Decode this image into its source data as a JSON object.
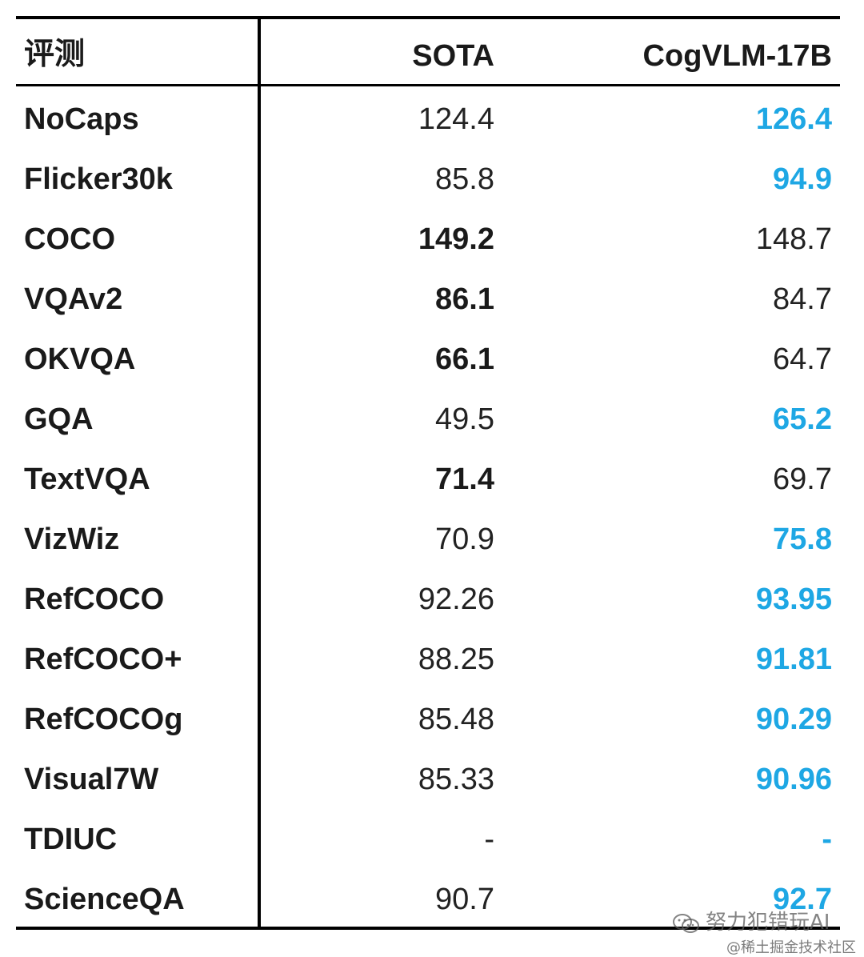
{
  "chart_data": {
    "type": "table",
    "columns": [
      "评测",
      "SOTA",
      "CogVLM-17B"
    ],
    "rows": [
      {
        "benchmark": "NoCaps",
        "sota": "124.4",
        "cogvlm": "126.4",
        "best": "cogvlm"
      },
      {
        "benchmark": "Flicker30k",
        "sota": "85.8",
        "cogvlm": "94.9",
        "best": "cogvlm"
      },
      {
        "benchmark": "COCO",
        "sota": "149.2",
        "cogvlm": "148.7",
        "best": "sota"
      },
      {
        "benchmark": "VQAv2",
        "sota": "86.1",
        "cogvlm": "84.7",
        "best": "sota"
      },
      {
        "benchmark": "OKVQA",
        "sota": "66.1",
        "cogvlm": "64.7",
        "best": "sota"
      },
      {
        "benchmark": "GQA",
        "sota": "49.5",
        "cogvlm": "65.2",
        "best": "cogvlm"
      },
      {
        "benchmark": "TextVQA",
        "sota": "71.4",
        "cogvlm": "69.7",
        "best": "sota"
      },
      {
        "benchmark": "VizWiz",
        "sota": "70.9",
        "cogvlm": "75.8",
        "best": "cogvlm"
      },
      {
        "benchmark": "RefCOCO",
        "sota": "92.26",
        "cogvlm": "93.95",
        "best": "cogvlm"
      },
      {
        "benchmark": "RefCOCO+",
        "sota": "88.25",
        "cogvlm": "91.81",
        "best": "cogvlm"
      },
      {
        "benchmark": "RefCOCOg",
        "sota": "85.48",
        "cogvlm": "90.29",
        "best": "cogvlm"
      },
      {
        "benchmark": "Visual7W",
        "sota": "85.33",
        "cogvlm": "90.96",
        "best": "cogvlm"
      },
      {
        "benchmark": "TDIUC",
        "sota": "-",
        "cogvlm": "-",
        "best": "cogvlm"
      },
      {
        "benchmark": "ScienceQA",
        "sota": "90.7",
        "cogvlm": "92.7",
        "best": "cogvlm"
      }
    ]
  },
  "colors": {
    "accent": "#1ea7e4",
    "text": "#1a1a1a",
    "rule": "#000000"
  },
  "watermark": {
    "line1": "努力犯错玩AI",
    "line2": "@稀土掘金技术社区",
    "icon": "wechat-icon"
  }
}
